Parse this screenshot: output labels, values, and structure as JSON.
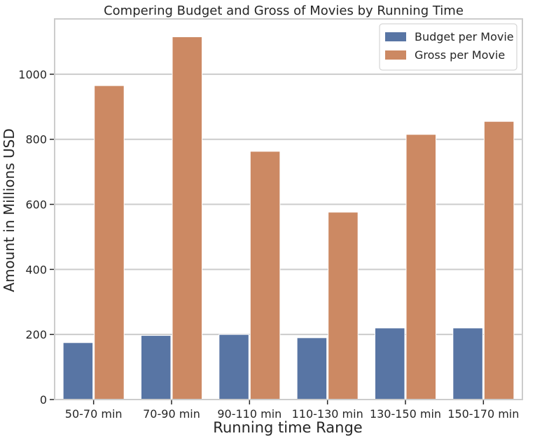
{
  "chart_data": {
    "type": "bar",
    "title": "Compering Budget and Gross of Movies by Running Time",
    "xlabel": "Running time Range",
    "ylabel": "Amount in Millions USD",
    "categories": [
      "50-70 min",
      "70-90 min",
      "90-110 min",
      "110-130 min",
      "130-150 min",
      "150-170 min"
    ],
    "series": [
      {
        "name": "Budget per Movie",
        "color": "#5875a4",
        "values": [
          175,
          197,
          200,
          190,
          220,
          220
        ]
      },
      {
        "name": "Gross per Movie",
        "color": "#cc8963",
        "values": [
          965,
          1115,
          763,
          576,
          815,
          855
        ]
      }
    ],
    "ylim": [
      0,
      1170
    ],
    "yticks": [
      0,
      200,
      400,
      600,
      800,
      1000
    ],
    "grid": true,
    "legend_position": "top-right"
  }
}
